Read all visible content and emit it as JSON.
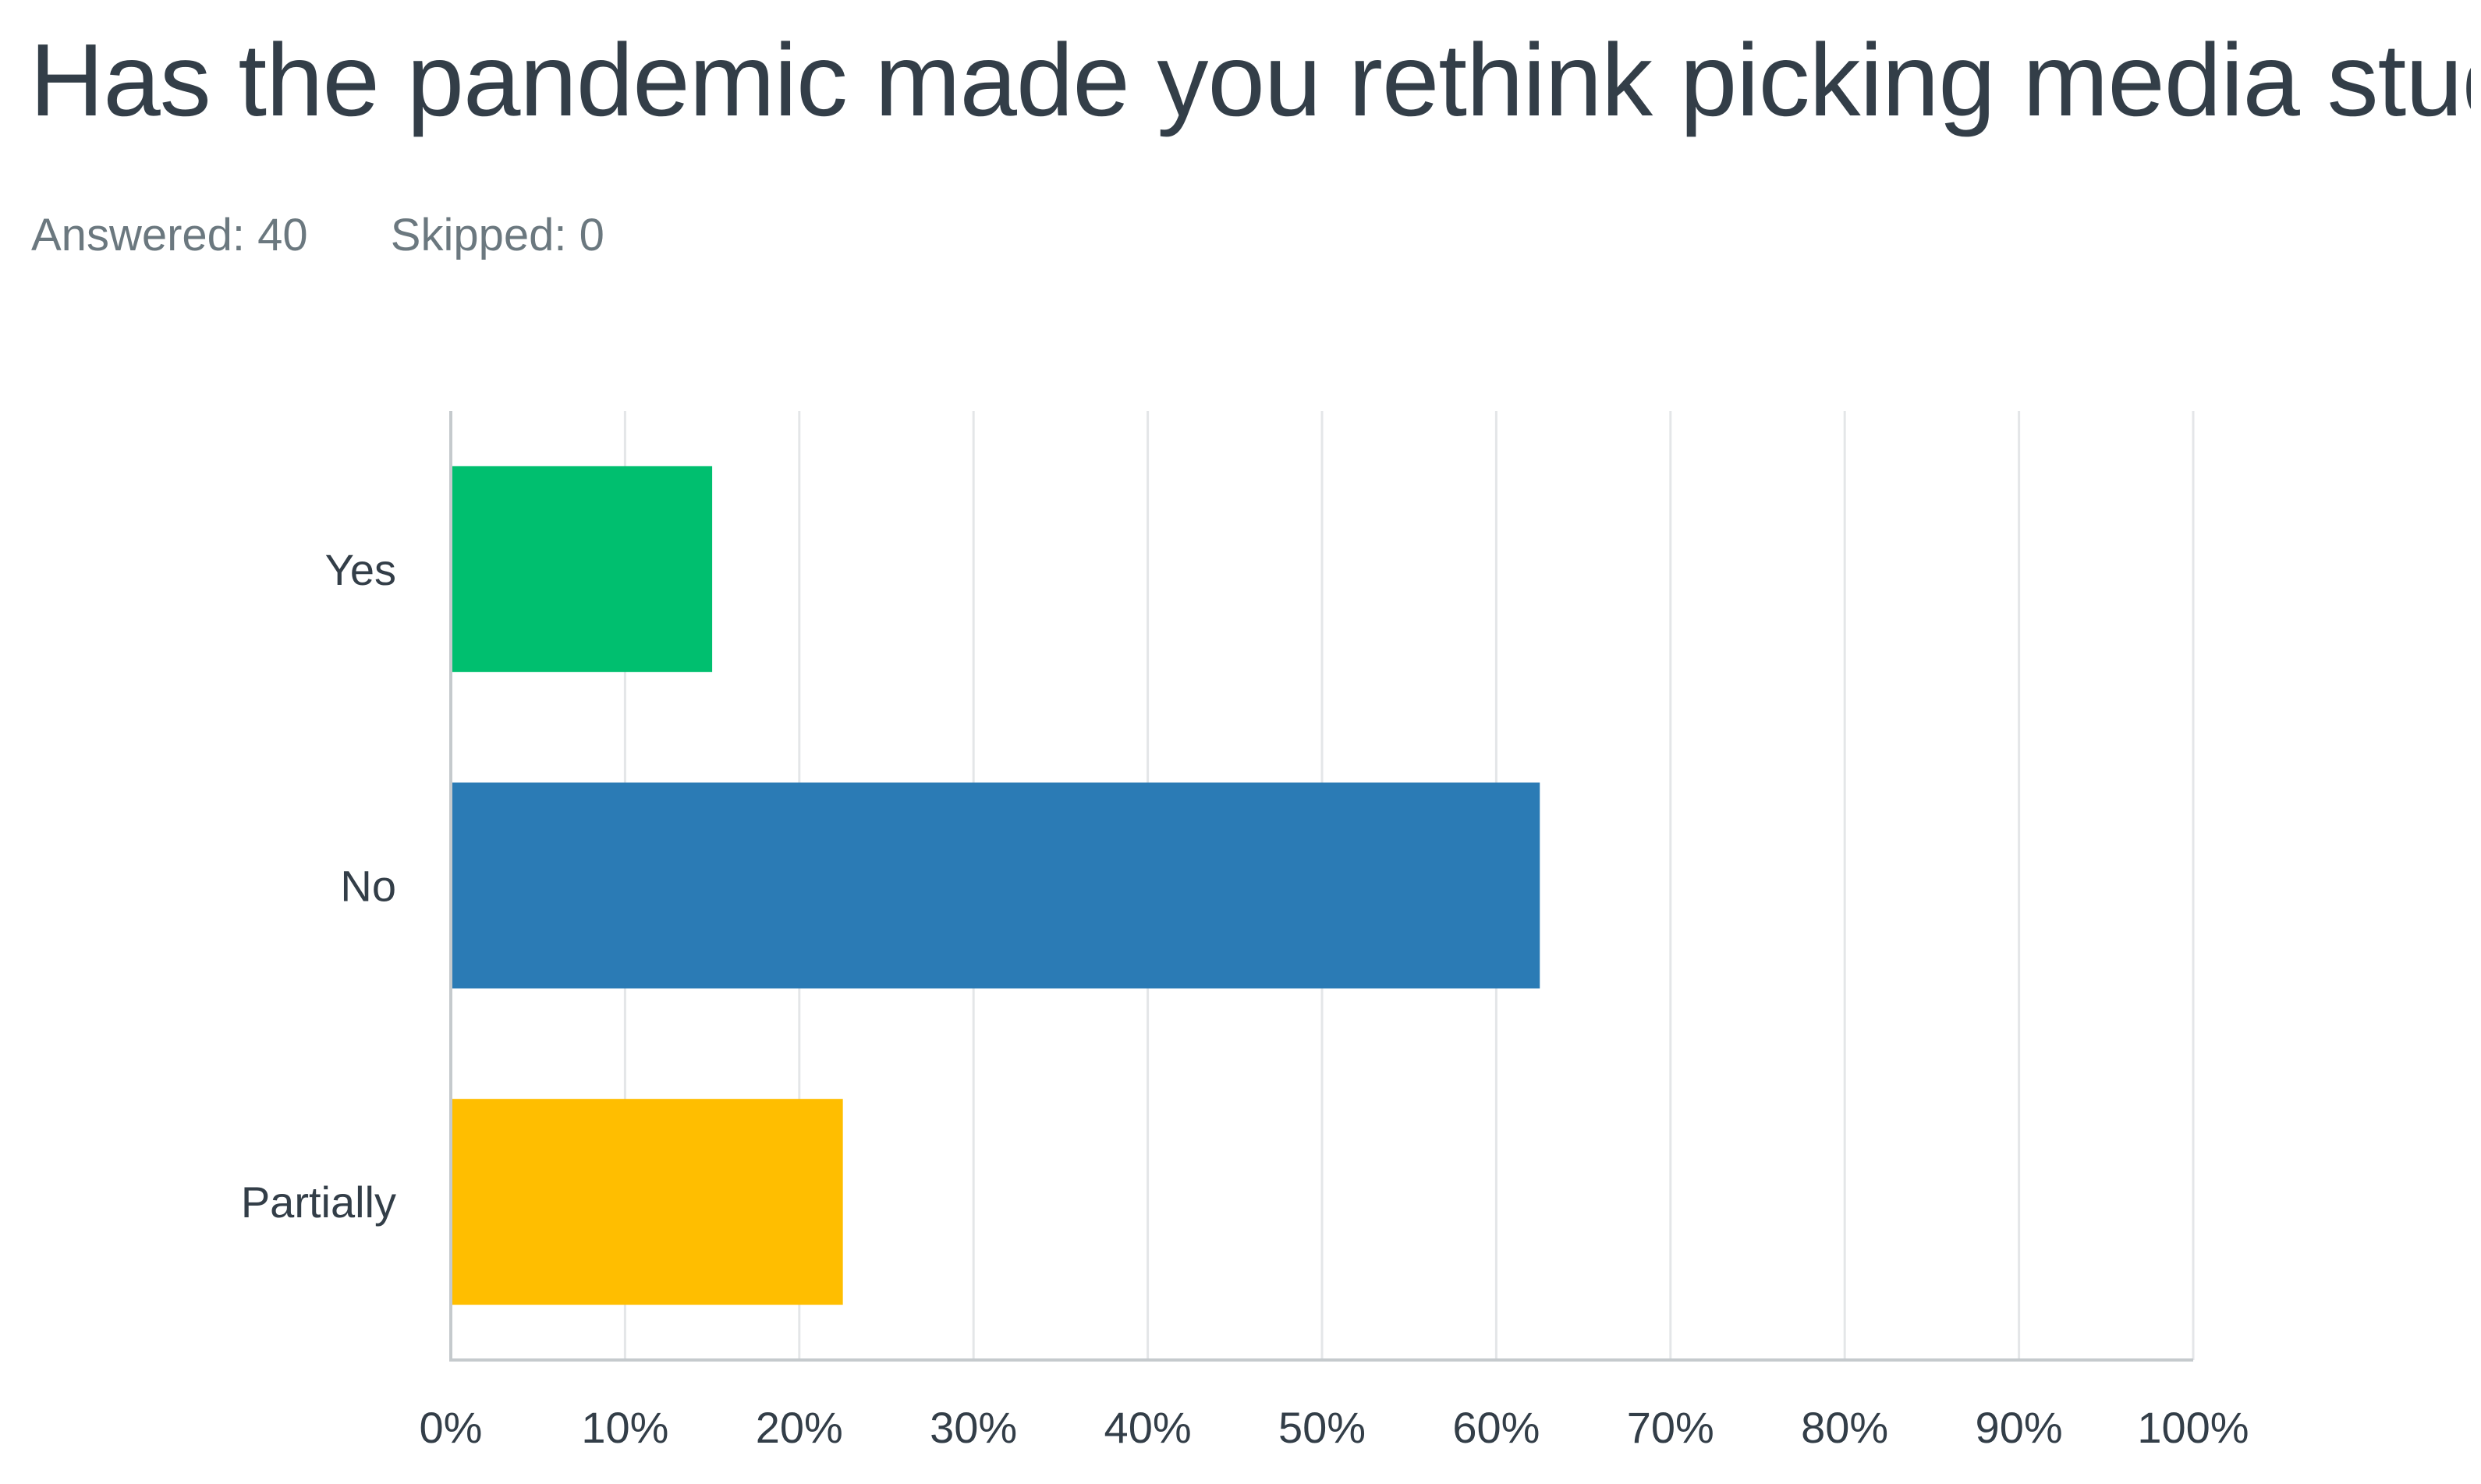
{
  "header": {
    "title": "Has the pandemic made you rethink picking media studies",
    "answered": "Answered: 40",
    "skipped": "Skipped: 0"
  },
  "chart_data": {
    "type": "bar",
    "orientation": "horizontal",
    "title": "Has the pandemic made you rethink picking media studies",
    "categories": [
      "Yes",
      "No",
      "Partially"
    ],
    "values": [
      15,
      62.5,
      22.5
    ],
    "colors": [
      "#00bf6f",
      "#2b7bb5",
      "#ffbe00"
    ],
    "xlim": [
      0,
      100
    ],
    "x_ticks": [
      "0%",
      "10%",
      "20%",
      "30%",
      "40%",
      "50%",
      "60%",
      "70%",
      "80%",
      "90%",
      "100%"
    ],
    "xlabel": "",
    "ylabel": "",
    "grid": true,
    "legend": "none"
  }
}
